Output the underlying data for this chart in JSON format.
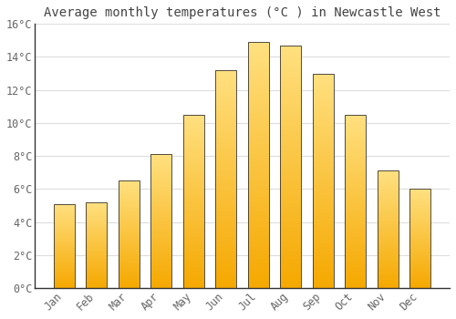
{
  "title": "Average monthly temperatures (°C ) in Newcastle West",
  "months": [
    "Jan",
    "Feb",
    "Mar",
    "Apr",
    "May",
    "Jun",
    "Jul",
    "Aug",
    "Sep",
    "Oct",
    "Nov",
    "Dec"
  ],
  "values": [
    5.1,
    5.2,
    6.5,
    8.1,
    10.5,
    13.2,
    14.9,
    14.7,
    13.0,
    10.5,
    7.1,
    6.0
  ],
  "bar_color_bottom": "#F5A800",
  "bar_color_top": "#FFD966",
  "bar_edge_color": "#333333",
  "ylim": [
    0,
    16
  ],
  "yticks": [
    0,
    2,
    4,
    6,
    8,
    10,
    12,
    14,
    16
  ],
  "ytick_labels": [
    "0°C",
    "2°C",
    "4°C",
    "6°C",
    "8°C",
    "10°C",
    "12°C",
    "14°C",
    "16°C"
  ],
  "background_color": "#FFFFFF",
  "plot_bg_color": "#FFFFFF",
  "grid_color": "#DDDDDD",
  "title_fontsize": 10,
  "tick_fontsize": 8.5,
  "figsize": [
    5.0,
    3.5
  ],
  "dpi": 100
}
